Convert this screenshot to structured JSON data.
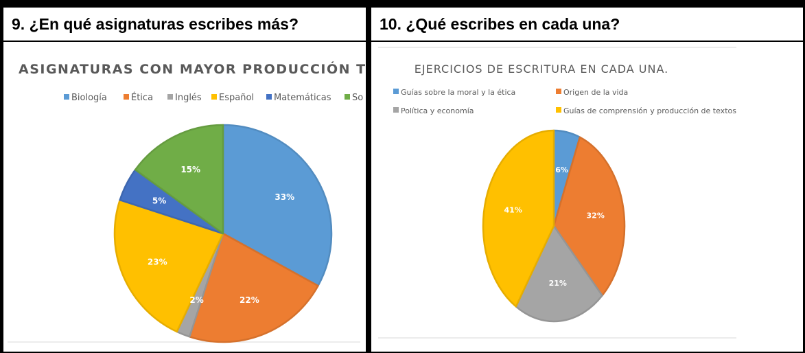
{
  "cells": [
    {
      "question": "9. ¿En qué asignaturas escribes más?"
    },
    {
      "question": "10. ¿Qué escribes en cada una?"
    }
  ],
  "chart_data": [
    {
      "type": "pie",
      "title": "ASIGNATURAS CON MAYOR PRODUCCIÓN TE",
      "legend_position": "top",
      "categories": [
        "Biología",
        "Ética",
        "Inglés",
        "Español",
        "Matemáticas",
        "So"
      ],
      "values": [
        33,
        22,
        2,
        23,
        5,
        15
      ],
      "labels": [
        "33%",
        "22%",
        "2%",
        "23%",
        "5%",
        "15%"
      ],
      "colors": [
        "#5B9BD5",
        "#ED7D31",
        "#A5A5A5",
        "#FFC000",
        "#4472C4",
        "#70AD47"
      ]
    },
    {
      "type": "pie",
      "title": "EJERCICIOS DE ESCRITURA EN CADA UNA.",
      "legend_position": "top",
      "categories": [
        "Guías sobre la moral y la ética",
        "Origen de la vida",
        "Política y economía",
        "Guías de comprensión y producción de textos"
      ],
      "values": [
        6,
        32,
        21,
        41
      ],
      "labels": [
        "6%",
        "32%",
        "21%",
        "41%"
      ],
      "colors": [
        "#5B9BD5",
        "#ED7D31",
        "#A5A5A5",
        "#FFC000"
      ]
    }
  ]
}
